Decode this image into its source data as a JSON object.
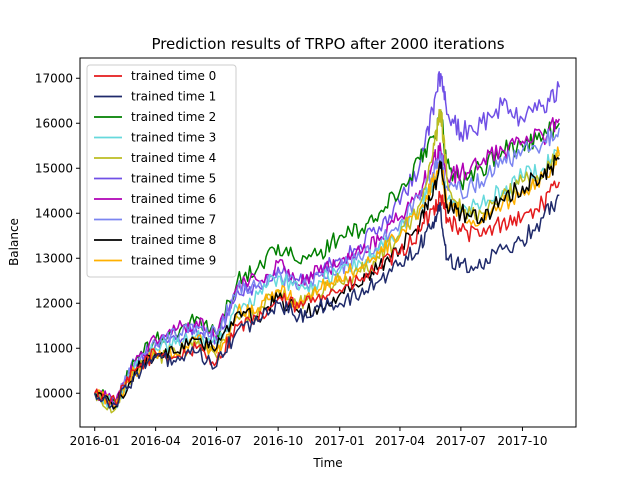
{
  "chart_data": {
    "type": "line",
    "title": "Prediction results of TRPO after 2000 iterations",
    "xlabel": "Time",
    "ylabel": "Balance",
    "x_ticks": [
      "2016-01",
      "2016-04",
      "2016-07",
      "2016-10",
      "2017-01",
      "2017-04",
      "2017-07",
      "2017-10"
    ],
    "y_ticks": [
      10000,
      11000,
      12000,
      13000,
      14000,
      15000,
      16000,
      17000
    ],
    "xlim": [
      "2015-12-10",
      "2017-12-20"
    ],
    "ylim": [
      9250,
      17450
    ],
    "legend_position": "upper-left",
    "grid": false,
    "x": [
      "2016-01-01",
      "2016-02-01",
      "2016-03-01",
      "2016-04-01",
      "2016-05-01",
      "2016-06-01",
      "2016-07-01",
      "2016-08-01",
      "2016-09-01",
      "2016-10-01",
      "2016-11-01",
      "2016-12-01",
      "2017-01-01",
      "2017-02-01",
      "2017-03-01",
      "2017-04-01",
      "2017-05-01",
      "2017-05-20",
      "2017-06-01",
      "2017-06-10",
      "2017-07-01",
      "2017-08-01",
      "2017-09-01",
      "2017-10-01",
      "2017-11-01",
      "2017-11-25"
    ],
    "series": [
      {
        "name": "trained time 0",
        "color": "#e41a1c",
        "values": [
          10000,
          9800,
          10500,
          10900,
          10800,
          11000,
          10700,
          11500,
          11600,
          12100,
          11900,
          12200,
          12300,
          12500,
          12800,
          13100,
          13600,
          14100,
          14400,
          13900,
          13600,
          13500,
          13800,
          13900,
          14200,
          14700
        ]
      },
      {
        "name": "trained time 1",
        "color": "#1f2a6b",
        "values": [
          10000,
          9750,
          10400,
          10800,
          10700,
          10900,
          10600,
          11400,
          11600,
          12000,
          11700,
          11900,
          12000,
          12200,
          12500,
          12900,
          13300,
          13800,
          14100,
          13000,
          12900,
          12800,
          13200,
          13400,
          13900,
          14400
        ]
      },
      {
        "name": "trained time 2",
        "color": "#008000",
        "values": [
          10000,
          9800,
          10700,
          11200,
          11300,
          11700,
          11300,
          12500,
          12800,
          13300,
          12900,
          13100,
          13500,
          13600,
          14000,
          14500,
          15200,
          15700,
          16200,
          15100,
          14700,
          15000,
          15400,
          15500,
          15700,
          16000
        ]
      },
      {
        "name": "trained time 3",
        "color": "#66d9dc",
        "values": [
          10000,
          9700,
          10600,
          11000,
          11100,
          11300,
          11100,
          11900,
          12200,
          12600,
          12300,
          12500,
          12700,
          12900,
          13200,
          13600,
          14100,
          14700,
          15000,
          14300,
          14000,
          14200,
          14500,
          14800,
          15000,
          15400
        ]
      },
      {
        "name": "trained time 4",
        "color": "#bcbd22",
        "values": [
          10000,
          9650,
          10500,
          10800,
          10900,
          11100,
          10800,
          11700,
          11800,
          12300,
          12000,
          12200,
          12500,
          12700,
          13000,
          13500,
          14200,
          15300,
          16300,
          14800,
          14100,
          14000,
          14400,
          14700,
          14800,
          15300
        ]
      },
      {
        "name": "trained time 5",
        "color": "#7050e6",
        "values": [
          10000,
          9800,
          10700,
          11100,
          11200,
          11400,
          11200,
          12300,
          12400,
          12800,
          12500,
          12700,
          13000,
          13300,
          13700,
          14200,
          15100,
          16300,
          17100,
          16200,
          15800,
          16000,
          16400,
          16100,
          16400,
          16800
        ]
      },
      {
        "name": "trained time 6",
        "color": "#b000b5",
        "values": [
          10000,
          9800,
          10700,
          11200,
          11400,
          11600,
          11300,
          12400,
          12500,
          12900,
          12400,
          12700,
          12900,
          13100,
          13400,
          13900,
          14500,
          15100,
          15400,
          14800,
          14900,
          15100,
          15400,
          15600,
          15700,
          16100
        ]
      },
      {
        "name": "trained time 7",
        "color": "#7b85f0",
        "values": [
          10000,
          9800,
          10700,
          11100,
          11300,
          11500,
          11300,
          12300,
          12400,
          12700,
          12300,
          12600,
          12800,
          13000,
          13300,
          13800,
          14300,
          14900,
          15300,
          14600,
          14500,
          14700,
          15100,
          15400,
          15600,
          15900
        ]
      },
      {
        "name": "trained time 8",
        "color": "#000000",
        "values": [
          10000,
          9700,
          10500,
          10900,
          10900,
          11200,
          11000,
          11800,
          11700,
          12100,
          11800,
          11900,
          12200,
          12400,
          12800,
          13200,
          13800,
          14400,
          15000,
          14200,
          14000,
          13900,
          14300,
          14600,
          14800,
          15200
        ]
      },
      {
        "name": "trained time 9",
        "color": "#ffb000",
        "values": [
          10000,
          9700,
          10500,
          10900,
          10900,
          11200,
          10900,
          11800,
          11900,
          12300,
          12000,
          12300,
          12600,
          12800,
          13100,
          13500,
          14100,
          14700,
          15100,
          14200,
          14000,
          13800,
          14200,
          14500,
          14800,
          15300
        ]
      }
    ]
  }
}
